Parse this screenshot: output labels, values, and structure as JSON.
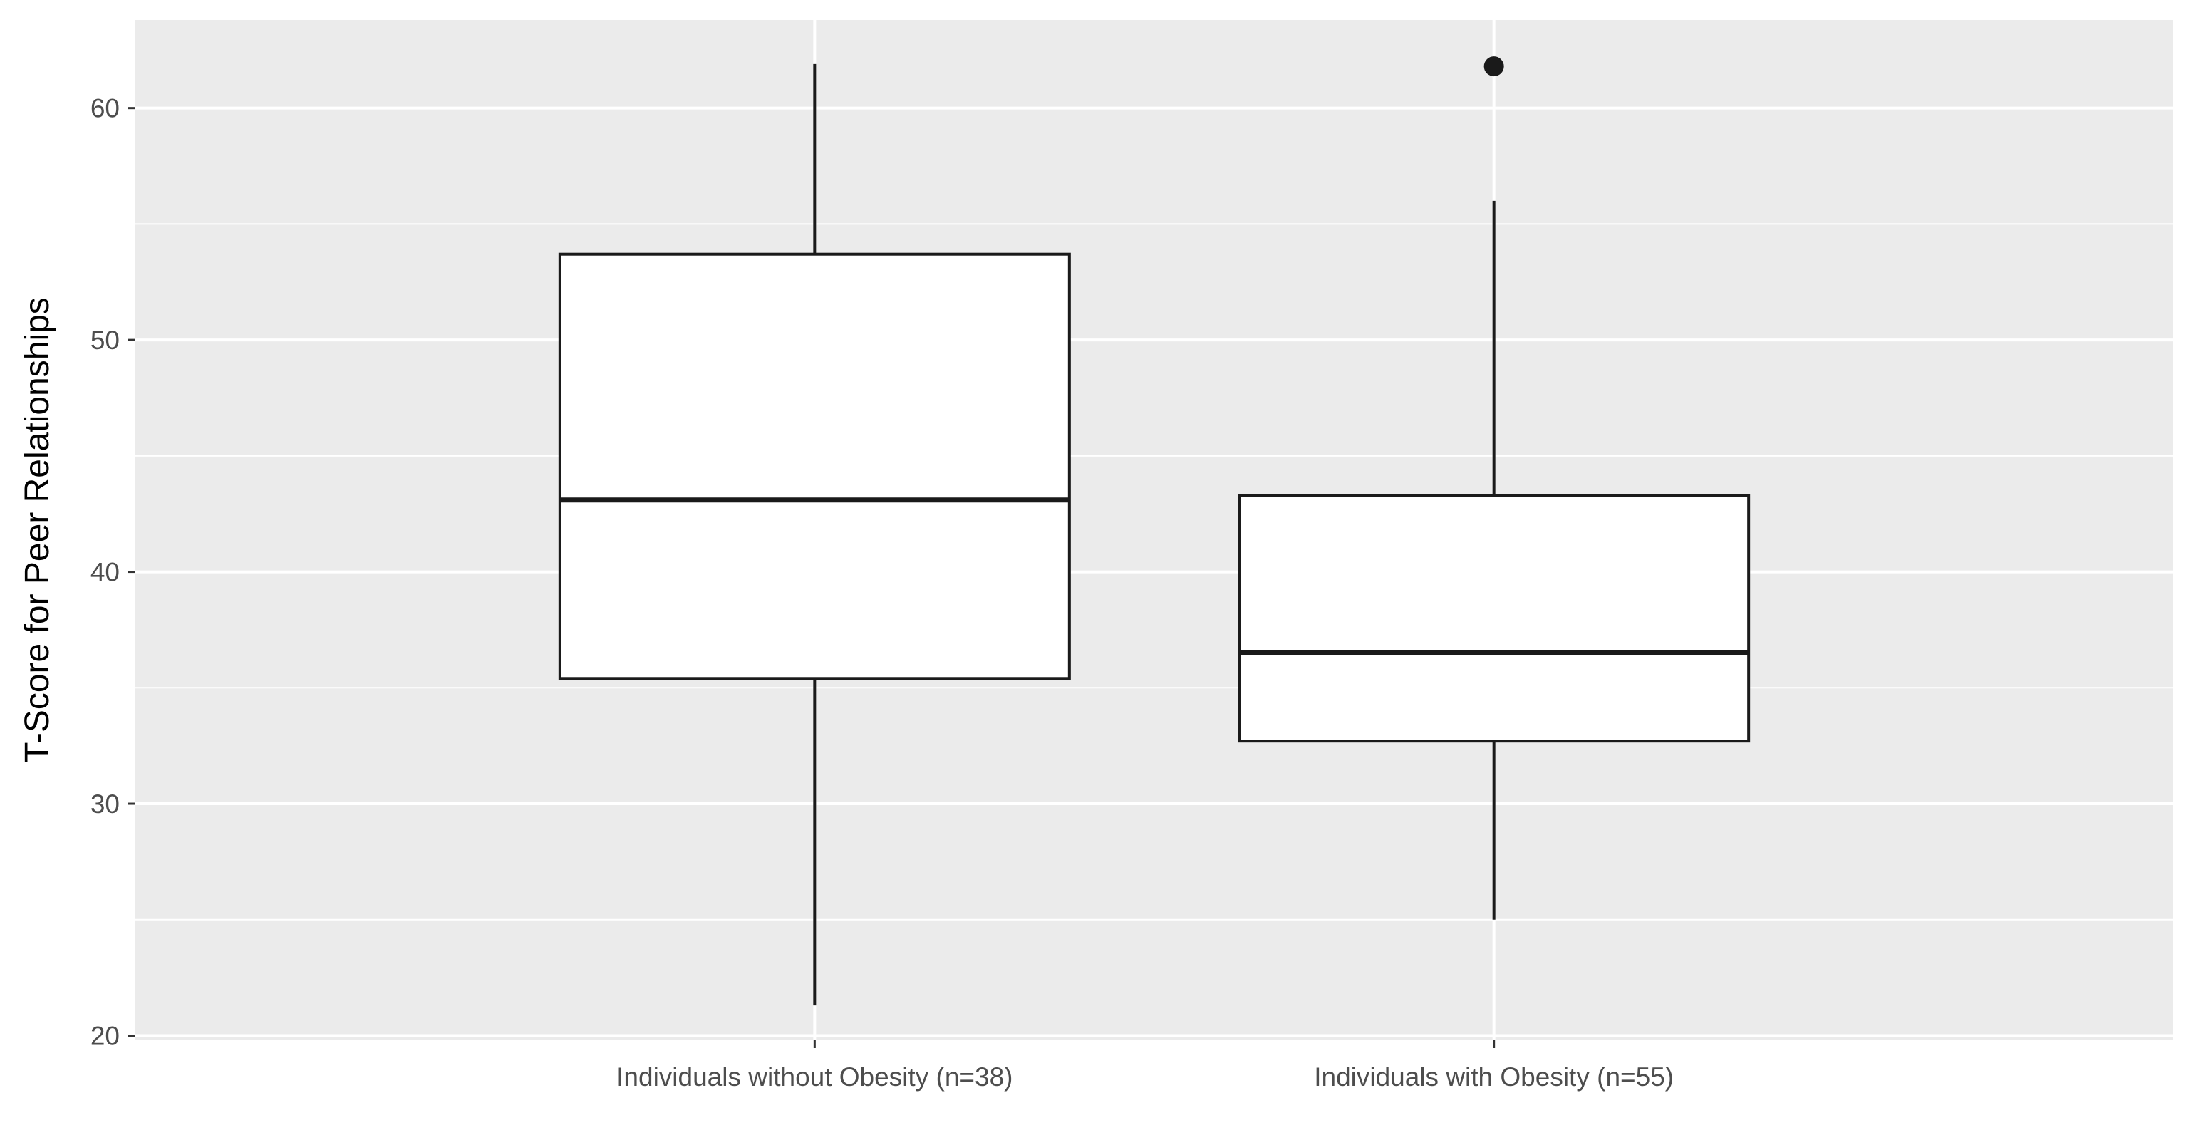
{
  "chart_data": {
    "type": "boxplot",
    "title": "",
    "xlabel": "",
    "ylabel": "T-Score for Peer Relationships",
    "ylim": [
      19.8,
      63.8
    ],
    "yticks": [
      20,
      30,
      40,
      50,
      60
    ],
    "grid": true,
    "legend": "none",
    "colors": {
      "panel_background": "#ebebeb",
      "grid": "#ffffff",
      "box_fill": "#ffffff",
      "box_stroke": "#1a1a1a",
      "tick_text": "#4d4d4d"
    },
    "categories": [
      "Individuals without Obesity (n=38)",
      "Individuals with Obesity (n=55)"
    ],
    "boxes": [
      {
        "category": "Individuals without Obesity (n=38)",
        "whisker_low": 21.3,
        "q1": 35.4,
        "median": 43.1,
        "q3": 53.7,
        "whisker_high": 61.9,
        "outliers": []
      },
      {
        "category": "Individuals with Obesity (n=55)",
        "whisker_low": 25.0,
        "q1": 32.7,
        "median": 36.5,
        "q3": 43.3,
        "whisker_high": 56.0,
        "outliers": [
          61.8
        ]
      }
    ]
  }
}
